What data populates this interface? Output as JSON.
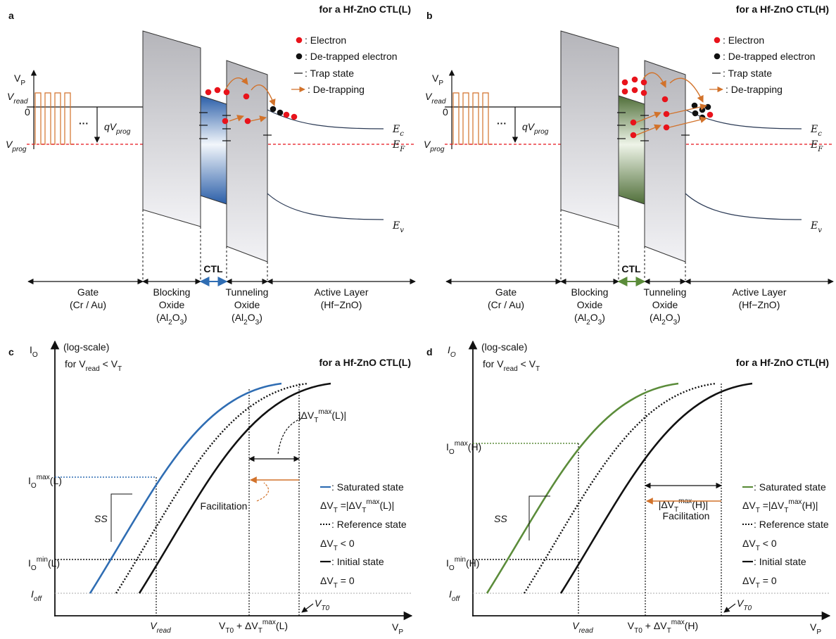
{
  "band_panels": [
    {
      "letter": "a",
      "heading": "for a Hf-ZnO CTL(L)",
      "legend": {
        "electron": ": Electron",
        "detrapped": ": De-trapped electron",
        "trap": ": Trap state",
        "detrapping": ": De-trapping"
      },
      "vp": [
        {
          "t": "V"
        },
        {
          "sub": "P"
        }
      ],
      "vread": [
        {
          "t": "V"
        },
        {
          "sub": "read"
        }
      ],
      "zero": "0",
      "vprog": [
        {
          "t": "V"
        },
        {
          "sub": "prog"
        }
      ],
      "dots": "···",
      "qvprog": [
        {
          "t": "qV"
        },
        {
          "sub": "prog"
        }
      ],
      "ec": [
        {
          "t": "E"
        },
        {
          "sub": "c"
        }
      ],
      "ef": [
        {
          "t": "E"
        },
        {
          "sub": "F"
        }
      ],
      "ev": [
        {
          "t": "E"
        },
        {
          "sub": "v"
        }
      ],
      "ctl": "CTL",
      "layers": [
        [
          [
            {
              "t": "Gate"
            }
          ],
          [
            {
              "t": "(Cr / Au)"
            }
          ]
        ],
        [
          [
            {
              "t": "Blocking"
            }
          ],
          [
            {
              "t": "Oxide"
            }
          ],
          [
            {
              "t": "(Al"
            },
            {
              "sub": "2"
            },
            {
              "t": "O"
            },
            {
              "sub": "3"
            },
            {
              "t": ")"
            }
          ]
        ],
        [
          [
            {
              "t": "Tunneling"
            }
          ],
          [
            {
              "t": "Oxide"
            }
          ],
          [
            {
              "t": "(Al"
            },
            {
              "sub": "2"
            },
            {
              "t": "O"
            },
            {
              "sub": "3"
            },
            {
              "t": ")"
            }
          ]
        ],
        [
          [
            {
              "t": "Active Layer"
            }
          ],
          [
            {
              "t": "(Hf−ZnO)"
            }
          ]
        ]
      ]
    },
    {
      "letter": "b",
      "heading": "for a Hf-ZnO CTL(H)",
      "legend": {
        "electron": ": Electron",
        "detrapped": ": De-trapped electron",
        "trap": ": Trap state",
        "detrapping": ": De-trapping"
      },
      "vp": [
        {
          "t": "V"
        },
        {
          "sub": "P"
        }
      ],
      "vread": [
        {
          "t": "V"
        },
        {
          "sub": "read"
        }
      ],
      "zero": "0",
      "vprog": [
        {
          "t": "V"
        },
        {
          "sub": "prog"
        }
      ],
      "dots": "···",
      "qvprog": [
        {
          "t": "qV"
        },
        {
          "sub": "prog"
        }
      ],
      "ec": [
        {
          "t": "E"
        },
        {
          "sub": "c"
        }
      ],
      "ef": [
        {
          "t": "E"
        },
        {
          "sub": "F"
        }
      ],
      "ev": [
        {
          "t": "E"
        },
        {
          "sub": "v"
        }
      ],
      "ctl": "CTL",
      "layers": [
        [
          [
            {
              "t": "Gate"
            }
          ],
          [
            {
              "t": "(Cr / Au)"
            }
          ]
        ],
        [
          [
            {
              "t": "Blocking"
            }
          ],
          [
            {
              "t": "Oxide"
            }
          ],
          [
            {
              "t": "(Al"
            },
            {
              "sub": "2"
            },
            {
              "t": "O"
            },
            {
              "sub": "3"
            },
            {
              "t": ")"
            }
          ]
        ],
        [
          [
            {
              "t": "Tunneling"
            }
          ],
          [
            {
              "t": "Oxide"
            }
          ],
          [
            {
              "t": "(Al"
            },
            {
              "sub": "2"
            },
            {
              "t": "O"
            },
            {
              "sub": "3"
            },
            {
              "t": ")"
            }
          ]
        ],
        [
          [
            {
              "t": "Active Layer"
            }
          ],
          [
            {
              "t": "(Hf−ZnO)"
            }
          ]
        ]
      ]
    }
  ],
  "plot_panels": [
    {
      "letter": "c",
      "heading": "for a Hf-ZnO CTL(L)",
      "io": [
        {
          "t": "I"
        },
        {
          "sub": "O"
        }
      ],
      "log": "(log-scale)",
      "cond": [
        {
          "t": "for V"
        },
        {
          "sub": "read"
        },
        {
          "t": " < V"
        },
        {
          "sub": "T"
        }
      ],
      "imax": [
        {
          "t": "I"
        },
        {
          "sub": "O"
        },
        {
          "sup": "max"
        },
        {
          "t": "(L)"
        }
      ],
      "imin": [
        {
          "t": "I"
        },
        {
          "sub": "O"
        },
        {
          "sup": "min"
        },
        {
          "t": "(L)"
        }
      ],
      "ioff": [
        {
          "t": "I"
        },
        {
          "sub": "off"
        }
      ],
      "ss": "SS",
      "facilitation": "Facilitation",
      "dvmax": [
        {
          "t": "|ΔV"
        },
        {
          "sub": "T"
        },
        {
          "sup": "max"
        },
        {
          "t": "(L)|"
        }
      ],
      "legend": [
        [
          {
            "t": ": Saturated state"
          }
        ],
        [
          {
            "t": "ΔV"
          },
          {
            "sub": "T"
          },
          {
            "t": " =|ΔV"
          },
          {
            "sub": "T"
          },
          {
            "sup": "max"
          },
          {
            "t": "(L)|"
          }
        ],
        [
          {
            "t": ": Reference state"
          }
        ],
        [
          {
            "t": "ΔV"
          },
          {
            "sub": "T"
          },
          {
            "t": " < 0"
          }
        ],
        [
          {
            "t": ": Initial state"
          }
        ],
        [
          {
            "t": "ΔV"
          },
          {
            "sub": "T"
          },
          {
            "t": " = 0"
          }
        ]
      ],
      "vt0": [
        {
          "t": "V"
        },
        {
          "sub": "T0"
        }
      ],
      "xread": [
        {
          "t": "V"
        },
        {
          "sub": "read"
        }
      ],
      "xshift": [
        {
          "t": "V"
        },
        {
          "sub": "T0"
        },
        {
          "t": " + ΔV"
        },
        {
          "sub": "T"
        },
        {
          "sup": "max"
        },
        {
          "t": "(L)"
        }
      ],
      "vp": [
        {
          "t": "V"
        },
        {
          "sub": "P"
        }
      ]
    },
    {
      "letter": "d",
      "heading": "for a Hf-ZnO CTL(H)",
      "io": [
        {
          "t": "I"
        },
        {
          "sub": "O"
        }
      ],
      "log": "(log-scale)",
      "cond": [
        {
          "t": "for V"
        },
        {
          "sub": "read"
        },
        {
          "t": " < V"
        },
        {
          "sub": "T"
        }
      ],
      "imax": [
        {
          "t": "I"
        },
        {
          "sub": "O"
        },
        {
          "sup": "max"
        },
        {
          "t": "(H)"
        }
      ],
      "imin": [
        {
          "t": "I"
        },
        {
          "sub": "O"
        },
        {
          "sup": "min"
        },
        {
          "t": "(H)"
        }
      ],
      "ioff": [
        {
          "t": "I"
        },
        {
          "sub": "off"
        }
      ],
      "ss": "SS",
      "facilitation": "Facilitation",
      "dvmax": [
        {
          "t": "|ΔV"
        },
        {
          "sub": "T"
        },
        {
          "sup": "max"
        },
        {
          "t": "(H)|"
        }
      ],
      "legend": [
        [
          {
            "t": ": Saturated state"
          }
        ],
        [
          {
            "t": "ΔV"
          },
          {
            "sub": "T"
          },
          {
            "t": " =|ΔV"
          },
          {
            "sub": "T"
          },
          {
            "sup": "max"
          },
          {
            "t": "(H)|"
          }
        ],
        [
          {
            "t": ": Reference state"
          }
        ],
        [
          {
            "t": "ΔV"
          },
          {
            "sub": "T"
          },
          {
            "t": " < 0"
          }
        ],
        [
          {
            "t": ": Initial state"
          }
        ],
        [
          {
            "t": "ΔV"
          },
          {
            "sub": "T"
          },
          {
            "t": " = 0"
          }
        ]
      ],
      "vt0": [
        {
          "t": "V"
        },
        {
          "sub": "T0"
        }
      ],
      "xread": [
        {
          "t": "V"
        },
        {
          "sub": "read"
        }
      ],
      "xshift": [
        {
          "t": "V"
        },
        {
          "sub": "T0"
        },
        {
          "t": " + ΔV"
        },
        {
          "sub": "T"
        },
        {
          "sup": "max"
        },
        {
          "t": "(H)"
        }
      ],
      "vp": [
        {
          "t": "V"
        },
        {
          "sub": "P"
        }
      ]
    }
  ]
}
